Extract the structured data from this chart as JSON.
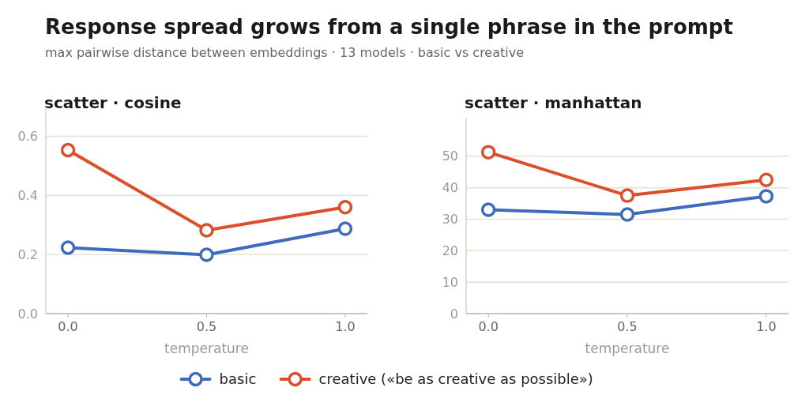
{
  "chart_data": [
    {
      "type": "other",
      "title": "Response spread grows from a single phrase in the prompt",
      "subtitle": "max pairwise distance between embeddings · 13 models · basic vs creative"
    },
    {
      "type": "line",
      "title": "scatter · cosine",
      "xlabel": "temperature",
      "x": [
        0,
        0.5,
        1
      ],
      "xlim": [
        -0.08,
        1.08
      ],
      "xticks": [
        {
          "value": 0,
          "label": "0.0"
        },
        {
          "value": 0.5,
          "label": "0.5"
        },
        {
          "value": 1,
          "label": "1.0"
        }
      ],
      "ylim": [
        0,
        0.7
      ],
      "yticks": [
        {
          "value": 0,
          "label": "0.0"
        },
        0.2,
        0.4,
        0.6
      ],
      "grid": "y",
      "marker": "circle",
      "line_style": "solid",
      "legend": "bottom",
      "series": [
        {
          "name": "basic",
          "color": "#3d6cbd",
          "values": [
            0.223,
            0.199,
            0.287
          ]
        },
        {
          "name": "creative («be as creative as possible»)",
          "color": "#d9502b",
          "values": [
            0.553,
            0.282,
            0.36
          ]
        }
      ]
    },
    {
      "type": "line",
      "title": "scatter · manhattan",
      "xlabel": "temperature",
      "x": [
        0,
        0.5,
        1
      ],
      "xlim": [
        -0.08,
        1.08
      ],
      "xticks": [
        {
          "value": 0,
          "label": "0.0"
        },
        {
          "value": 0.5,
          "label": "0.5"
        },
        {
          "value": 1,
          "label": "1.0"
        }
      ],
      "ylim": [
        0,
        62
      ],
      "yticks": [
        0,
        10,
        20,
        30,
        40,
        50
      ],
      "grid": "y",
      "marker": "circle",
      "line_style": "solid",
      "series": [
        {
          "color": "#3d6cbd",
          "values": [
            33,
            31.5,
            37.3
          ]
        },
        {
          "color": "#d9502b",
          "values": [
            51.3,
            37.5,
            42.5
          ]
        }
      ]
    }
  ]
}
